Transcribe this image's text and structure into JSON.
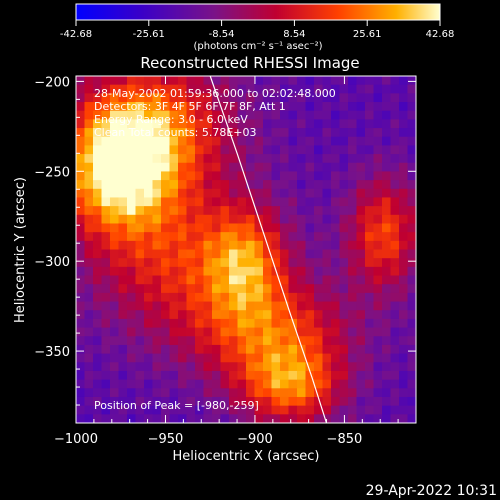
{
  "chart_data": {
    "type": "heatmap",
    "title": "Reconstructed RHESSI Image",
    "xlabel": "Heliocentric X (arcsec)",
    "ylabel": "Heliocentric Y (arcsec)",
    "xlim": [
      -1000,
      -810
    ],
    "ylim": [
      -390,
      -197
    ],
    "x_ticks": [
      -1000,
      -950,
      -900,
      -850
    ],
    "y_ticks": [
      -200,
      -250,
      -300,
      -350
    ],
    "colorbar": {
      "min": -42.68,
      "max": 42.68,
      "tick_labels": [
        "-42.68",
        "-25.61",
        "-8.54",
        "8.54",
        "25.61",
        "42.68"
      ],
      "units": "(photons cm⁻² s⁻¹ asec⁻²)"
    },
    "info_lines": [
      "28-May-2002 01:59:36.000 to 02:02:48.000",
      "Detectors: 3F 4F 5F 6F 7F 8F, Att 1",
      "Energy Range: 3.0 - 6.0 keV",
      "Clean     Total counts: 5.78E+03"
    ],
    "peak_label": "Position of Peak = [-980,-259]",
    "limb_line": [
      [
        -925,
        -197
      ],
      [
        -910,
        -240
      ],
      [
        -895,
        -285
      ],
      [
        -880,
        -330
      ],
      [
        -868,
        -365
      ],
      [
        -860,
        -390
      ]
    ],
    "sources": [
      {
        "x": -977,
        "y": -250,
        "sx": 22,
        "sy": 25,
        "amp": 55
      },
      {
        "x": -955,
        "y": -225,
        "sx": 30,
        "sy": 25,
        "amp": 38
      },
      {
        "x": -940,
        "y": -300,
        "sx": 35,
        "sy": 30,
        "amp": 30
      },
      {
        "x": -905,
        "y": -300,
        "sx": 15,
        "sy": 20,
        "amp": 32
      },
      {
        "x": -890,
        "y": -340,
        "sx": 30,
        "sy": 20,
        "amp": 34
      },
      {
        "x": -880,
        "y": -370,
        "sx": 20,
        "sy": 15,
        "amp": 38
      },
      {
        "x": -828,
        "y": -285,
        "sx": 14,
        "sy": 22,
        "amp": 35
      }
    ],
    "background": -18
  },
  "footer": {
    "datetime": "29-Apr-2022 10:31"
  }
}
